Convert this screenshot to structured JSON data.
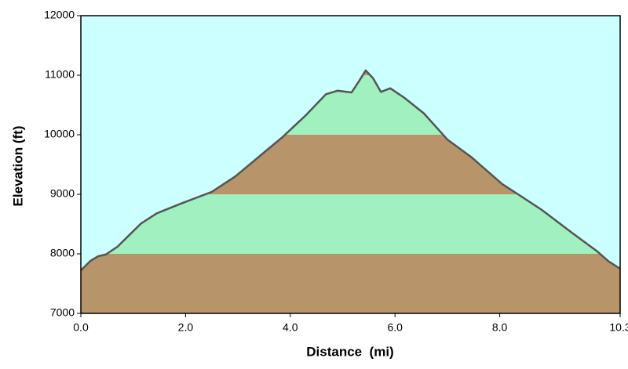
{
  "chart_data": {
    "type": "area",
    "x_label": "Distance  (mi)",
    "y_label": "Elevation (ft)",
    "x": [
      0,
      0.18,
      0.33,
      0.48,
      0.7,
      0.93,
      1.15,
      1.45,
      1.9,
      2.5,
      2.95,
      3.55,
      3.85,
      4.3,
      4.68,
      4.9,
      5.17,
      5.32,
      5.44,
      5.58,
      5.73,
      5.91,
      6.18,
      6.55,
      7.0,
      7.45,
      8.05,
      8.35,
      8.8,
      9.4,
      9.85,
      10.07,
      10.3
    ],
    "values": [
      7720,
      7880,
      7960,
      7990,
      8120,
      8320,
      8510,
      8680,
      8840,
      9040,
      9300,
      9740,
      9960,
      10330,
      10680,
      10740,
      10710,
      10910,
      11080,
      10950,
      10720,
      10780,
      10620,
      10360,
      9920,
      9630,
      9170,
      9000,
      8740,
      8340,
      8050,
      7880,
      7750
    ],
    "xlim": [
      0,
      10.3
    ],
    "xticks": [
      {
        "value": 0,
        "label": "0.0"
      },
      {
        "value": 2,
        "label": "2.0"
      },
      {
        "value": 4,
        "label": "4.0"
      },
      {
        "value": 6,
        "label": "6.0"
      },
      {
        "value": 8,
        "label": "8.0"
      },
      {
        "value": 10.3,
        "label": "10.3"
      }
    ],
    "ylim": [
      7000,
      12000
    ],
    "yticks": [
      7000,
      8000,
      9000,
      10000,
      11000,
      12000
    ],
    "sky_color": "#ccffff",
    "band_colors": [
      "#b8946a",
      "#a0f0c0"
    ],
    "line_color": "#555555"
  }
}
